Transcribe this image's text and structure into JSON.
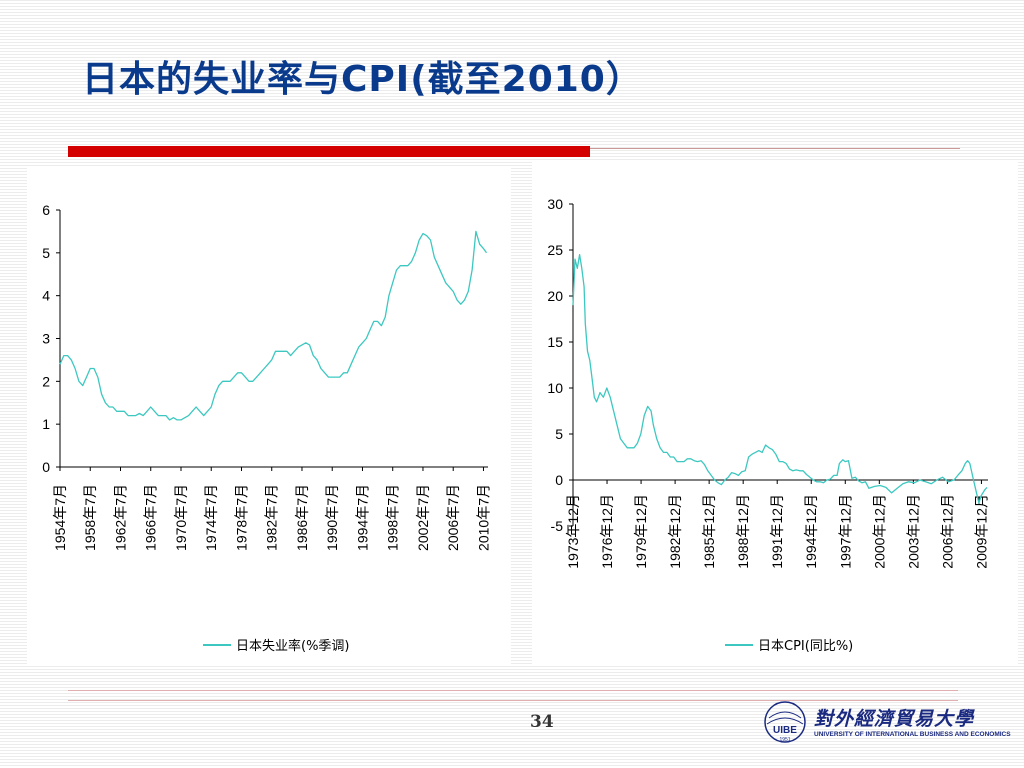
{
  "slide": {
    "title": "日本的失业率与CPI(截至2010）",
    "page_number": "34"
  },
  "logo": {
    "badge_text": "UIBE",
    "year_text": "1951",
    "name_cn": "對外經濟貿易大學",
    "name_en": "UNIVERSITY OF INTERNATIONAL BUSINESS AND ECONOMICS"
  },
  "colors": {
    "title": "#0a3a8c",
    "accent_red": "#d40000",
    "series": "#3cc8c0"
  },
  "chart_data": [
    {
      "type": "line",
      "y_ticks": [
        "0",
        "1",
        "2",
        "3",
        "4",
        "5",
        "6"
      ],
      "ylim": [
        0,
        6
      ],
      "xlim": [
        1954.5,
        2011.1
      ],
      "x_tick_labels": [
        "1954年7月",
        "1958年7月",
        "1962年7月",
        "1966年7月",
        "1970年7月",
        "1974年7月",
        "1978年7月",
        "1982年7月",
        "1986年7月",
        "1990年7月",
        "1994年7月",
        "1998年7月",
        "2002年7月",
        "2006年7月",
        "2010年7月"
      ],
      "x_tick_values": [
        1954.5,
        1958.5,
        1962.5,
        1966.5,
        1970.5,
        1974.5,
        1978.5,
        1982.5,
        1986.5,
        1990.5,
        1994.5,
        1998.5,
        2002.5,
        2006.5,
        2010.5
      ],
      "legend_position": "bottom",
      "series": [
        {
          "name": "日本失业率(%季调)",
          "points": [
            [
              1954.5,
              2.4
            ],
            [
              1955.0,
              2.6
            ],
            [
              1955.5,
              2.6
            ],
            [
              1956.0,
              2.5
            ],
            [
              1956.5,
              2.3
            ],
            [
              1957.0,
              2.0
            ],
            [
              1957.5,
              1.9
            ],
            [
              1958.0,
              2.1
            ],
            [
              1958.5,
              2.3
            ],
            [
              1959.0,
              2.3
            ],
            [
              1959.5,
              2.1
            ],
            [
              1960.0,
              1.7
            ],
            [
              1960.5,
              1.5
            ],
            [
              1961.0,
              1.4
            ],
            [
              1961.5,
              1.4
            ],
            [
              1962.0,
              1.3
            ],
            [
              1962.5,
              1.3
            ],
            [
              1963.0,
              1.3
            ],
            [
              1963.5,
              1.2
            ],
            [
              1964.0,
              1.2
            ],
            [
              1964.5,
              1.2
            ],
            [
              1965.0,
              1.25
            ],
            [
              1965.5,
              1.2
            ],
            [
              1966.0,
              1.3
            ],
            [
              1966.5,
              1.4
            ],
            [
              1967.0,
              1.3
            ],
            [
              1967.5,
              1.2
            ],
            [
              1968.0,
              1.2
            ],
            [
              1968.5,
              1.2
            ],
            [
              1969.0,
              1.1
            ],
            [
              1969.5,
              1.15
            ],
            [
              1970.0,
              1.1
            ],
            [
              1970.5,
              1.1
            ],
            [
              1971.0,
              1.15
            ],
            [
              1971.5,
              1.2
            ],
            [
              1972.0,
              1.3
            ],
            [
              1972.5,
              1.4
            ],
            [
              1973.0,
              1.3
            ],
            [
              1973.5,
              1.2
            ],
            [
              1974.0,
              1.3
            ],
            [
              1974.5,
              1.4
            ],
            [
              1975.0,
              1.7
            ],
            [
              1975.5,
              1.9
            ],
            [
              1976.0,
              2.0
            ],
            [
              1976.5,
              2.0
            ],
            [
              1977.0,
              2.0
            ],
            [
              1977.5,
              2.1
            ],
            [
              1978.0,
              2.2
            ],
            [
              1978.5,
              2.2
            ],
            [
              1979.0,
              2.1
            ],
            [
              1979.5,
              2.0
            ],
            [
              1980.0,
              2.0
            ],
            [
              1980.5,
              2.1
            ],
            [
              1981.0,
              2.2
            ],
            [
              1981.5,
              2.3
            ],
            [
              1982.0,
              2.4
            ],
            [
              1982.5,
              2.5
            ],
            [
              1983.0,
              2.7
            ],
            [
              1983.5,
              2.7
            ],
            [
              1984.0,
              2.7
            ],
            [
              1984.5,
              2.7
            ],
            [
              1985.0,
              2.6
            ],
            [
              1985.5,
              2.7
            ],
            [
              1986.0,
              2.8
            ],
            [
              1986.5,
              2.85
            ],
            [
              1987.0,
              2.9
            ],
            [
              1987.5,
              2.85
            ],
            [
              1988.0,
              2.6
            ],
            [
              1988.5,
              2.5
            ],
            [
              1989.0,
              2.3
            ],
            [
              1989.5,
              2.2
            ],
            [
              1990.0,
              2.1
            ],
            [
              1990.5,
              2.1
            ],
            [
              1991.0,
              2.1
            ],
            [
              1991.5,
              2.1
            ],
            [
              1992.0,
              2.2
            ],
            [
              1992.5,
              2.2
            ],
            [
              1993.0,
              2.4
            ],
            [
              1993.5,
              2.6
            ],
            [
              1994.0,
              2.8
            ],
            [
              1994.5,
              2.9
            ],
            [
              1995.0,
              3.0
            ],
            [
              1995.5,
              3.2
            ],
            [
              1996.0,
              3.4
            ],
            [
              1996.5,
              3.4
            ],
            [
              1997.0,
              3.3
            ],
            [
              1997.5,
              3.5
            ],
            [
              1998.0,
              4.0
            ],
            [
              1998.5,
              4.3
            ],
            [
              1999.0,
              4.6
            ],
            [
              1999.5,
              4.7
            ],
            [
              2000.0,
              4.7
            ],
            [
              2000.5,
              4.7
            ],
            [
              2001.0,
              4.8
            ],
            [
              2001.5,
              5.0
            ],
            [
              2002.0,
              5.3
            ],
            [
              2002.5,
              5.45
            ],
            [
              2003.0,
              5.4
            ],
            [
              2003.5,
              5.3
            ],
            [
              2004.0,
              4.9
            ],
            [
              2004.5,
              4.7
            ],
            [
              2005.0,
              4.5
            ],
            [
              2005.5,
              4.3
            ],
            [
              2006.0,
              4.2
            ],
            [
              2006.5,
              4.1
            ],
            [
              2007.0,
              3.9
            ],
            [
              2007.5,
              3.8
            ],
            [
              2008.0,
              3.9
            ],
            [
              2008.5,
              4.1
            ],
            [
              2009.0,
              4.6
            ],
            [
              2009.5,
              5.5
            ],
            [
              2010.0,
              5.2
            ],
            [
              2010.5,
              5.1
            ],
            [
              2010.9,
              5.0
            ]
          ]
        }
      ]
    },
    {
      "type": "line",
      "y_ticks": [
        "-5",
        "0",
        "5",
        "10",
        "15",
        "20",
        "25",
        "30"
      ],
      "ylim": [
        -5,
        30
      ],
      "xlim": [
        1973.92,
        2010.5
      ],
      "x_tick_labels": [
        "1973年12月",
        "1976年12月",
        "1979年12月",
        "1982年12月",
        "1985年12月",
        "1988年12月",
        "1991年12月",
        "1994年12月",
        "1997年12月",
        "2000年12月",
        "2003年12月",
        "2006年12月",
        "2009年12月"
      ],
      "x_tick_values": [
        1973.92,
        1976.92,
        1979.92,
        1982.92,
        1985.92,
        1988.92,
        1991.92,
        1994.92,
        1997.92,
        2000.92,
        2003.92,
        2006.92,
        2009.92
      ],
      "legend_position": "bottom",
      "series": [
        {
          "name": "日本CPI(同比%)",
          "points": [
            [
              1973.92,
              19.0
            ],
            [
              1974.1,
              24.0
            ],
            [
              1974.3,
              23.0
            ],
            [
              1974.5,
              24.5
            ],
            [
              1974.7,
              23.0
            ],
            [
              1974.9,
              21.0
            ],
            [
              1975.0,
              17.0
            ],
            [
              1975.2,
              14.0
            ],
            [
              1975.4,
              13.0
            ],
            [
              1975.6,
              11.0
            ],
            [
              1975.8,
              9.0
            ],
            [
              1976.0,
              8.5
            ],
            [
              1976.3,
              9.5
            ],
            [
              1976.6,
              9.0
            ],
            [
              1976.9,
              10.0
            ],
            [
              1977.2,
              9.0
            ],
            [
              1977.5,
              7.5
            ],
            [
              1977.8,
              6.0
            ],
            [
              1978.1,
              4.5
            ],
            [
              1978.4,
              4.0
            ],
            [
              1978.7,
              3.5
            ],
            [
              1979.0,
              3.5
            ],
            [
              1979.3,
              3.5
            ],
            [
              1979.6,
              4.0
            ],
            [
              1979.9,
              5.0
            ],
            [
              1980.2,
              7.0
            ],
            [
              1980.5,
              8.0
            ],
            [
              1980.8,
              7.5
            ],
            [
              1981.0,
              6.0
            ],
            [
              1981.3,
              4.5
            ],
            [
              1981.6,
              3.5
            ],
            [
              1981.9,
              3.0
            ],
            [
              1982.2,
              3.0
            ],
            [
              1982.5,
              2.5
            ],
            [
              1982.8,
              2.5
            ],
            [
              1983.1,
              2.0
            ],
            [
              1983.4,
              2.0
            ],
            [
              1983.7,
              2.0
            ],
            [
              1984.0,
              2.3
            ],
            [
              1984.3,
              2.3
            ],
            [
              1984.6,
              2.1
            ],
            [
              1984.9,
              2.0
            ],
            [
              1985.2,
              2.1
            ],
            [
              1985.5,
              1.7
            ],
            [
              1985.8,
              1.0
            ],
            [
              1986.1,
              0.5
            ],
            [
              1986.4,
              0.0
            ],
            [
              1986.7,
              -0.3
            ],
            [
              1987.0,
              -0.5
            ],
            [
              1987.3,
              0.0
            ],
            [
              1987.6,
              0.3
            ],
            [
              1987.9,
              0.8
            ],
            [
              1988.2,
              0.7
            ],
            [
              1988.5,
              0.5
            ],
            [
              1988.8,
              0.9
            ],
            [
              1989.1,
              1.0
            ],
            [
              1989.4,
              2.5
            ],
            [
              1989.7,
              2.8
            ],
            [
              1990.0,
              3.0
            ],
            [
              1990.3,
              3.2
            ],
            [
              1990.6,
              3.0
            ],
            [
              1990.9,
              3.8
            ],
            [
              1991.2,
              3.5
            ],
            [
              1991.5,
              3.3
            ],
            [
              1991.8,
              2.8
            ],
            [
              1992.1,
              2.0
            ],
            [
              1992.4,
              2.0
            ],
            [
              1992.7,
              1.8
            ],
            [
              1993.0,
              1.2
            ],
            [
              1993.3,
              1.0
            ],
            [
              1993.6,
              1.1
            ],
            [
              1993.9,
              1.0
            ],
            [
              1994.2,
              1.0
            ],
            [
              1994.5,
              0.6
            ],
            [
              1994.8,
              0.3
            ],
            [
              1995.1,
              0.0
            ],
            [
              1995.4,
              -0.2
            ],
            [
              1995.7,
              -0.2
            ],
            [
              1996.0,
              -0.3
            ],
            [
              1996.3,
              0.0
            ],
            [
              1996.6,
              0.1
            ],
            [
              1996.9,
              0.5
            ],
            [
              1997.2,
              0.5
            ],
            [
              1997.4,
              1.8
            ],
            [
              1997.7,
              2.2
            ],
            [
              1997.9,
              2.0
            ],
            [
              1998.2,
              2.1
            ],
            [
              1998.5,
              0.2
            ],
            [
              1998.8,
              0.3
            ],
            [
              1999.1,
              -0.1
            ],
            [
              1999.4,
              -0.3
            ],
            [
              1999.7,
              -0.2
            ],
            [
              2000.0,
              -0.9
            ],
            [
              2000.5,
              -0.7
            ],
            [
              2001.0,
              -0.6
            ],
            [
              2001.5,
              -0.8
            ],
            [
              2002.0,
              -1.4
            ],
            [
              2002.5,
              -0.9
            ],
            [
              2003.0,
              -0.4
            ],
            [
              2003.5,
              -0.2
            ],
            [
              2004.0,
              -0.3
            ],
            [
              2004.5,
              0.0
            ],
            [
              2005.0,
              -0.2
            ],
            [
              2005.5,
              -0.4
            ],
            [
              2006.0,
              0.0
            ],
            [
              2006.5,
              0.3
            ],
            [
              2007.0,
              -0.2
            ],
            [
              2007.5,
              0.0
            ],
            [
              2007.9,
              0.6
            ],
            [
              2008.2,
              1.0
            ],
            [
              2008.5,
              1.8
            ],
            [
              2008.7,
              2.1
            ],
            [
              2008.9,
              1.8
            ],
            [
              2009.2,
              0.1
            ],
            [
              2009.5,
              -1.5
            ],
            [
              2009.7,
              -2.5
            ],
            [
              2009.9,
              -1.7
            ],
            [
              2010.2,
              -1.1
            ],
            [
              2010.4,
              -0.8
            ]
          ]
        }
      ]
    }
  ]
}
